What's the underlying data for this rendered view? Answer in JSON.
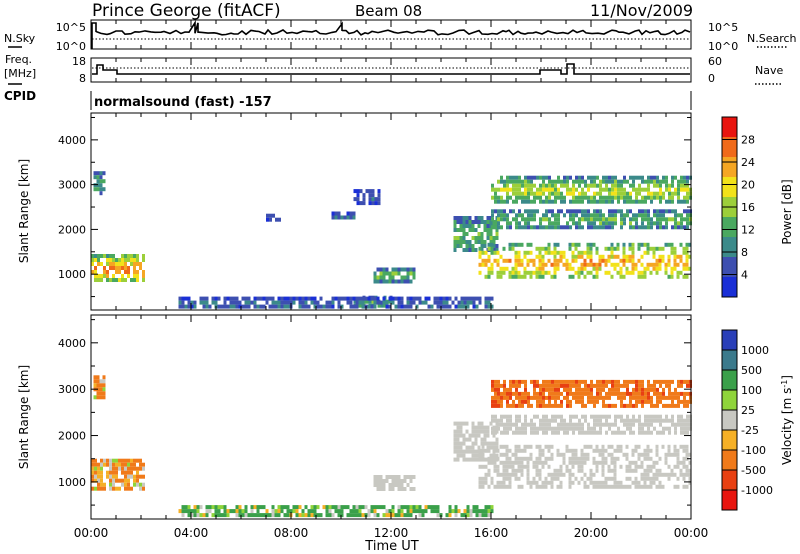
{
  "header": {
    "station": "Prince George (fitACF)",
    "beam": "Beam 08",
    "date": "11/Nov/2009"
  },
  "strip_panels": {
    "nsky_label": "N.Sky",
    "nsearch_label": "N.Search",
    "nsky_ticks": [
      "10^5",
      "10^0"
    ],
    "freq_label_1": "Freq.",
    "freq_label_2": "[MHz]",
    "freq_ticks": [
      "18",
      "8"
    ],
    "nave_label": "Nave",
    "nave_ticks": [
      "60",
      "0"
    ],
    "cpid_label": "CPID",
    "cpid_text": "normalsound (fast) -157"
  },
  "colors": {
    "power_scale": [
      "#1a2fd6",
      "#3d4fb0",
      "#3b8a8a",
      "#4aa860",
      "#9ccf3a",
      "#f2e21a",
      "#f5a623",
      "#f06a1a",
      "#e8150f"
    ],
    "velocity_scale": [
      "#2a3fb8",
      "#3b7a8c",
      "#3aa04a",
      "#8fd43a",
      "#c8c8c2",
      "#f5b026",
      "#f07a1a",
      "#e84012",
      "#e8150f"
    ]
  },
  "chart_data": [
    {
      "type": "heatmap",
      "name": "power",
      "xlabel": "",
      "ylabel": "Slant Range [km]",
      "y_ticks": [
        "1000",
        "2000",
        "3000",
        "4000"
      ],
      "ylim": [
        200,
        4600
      ],
      "colorbar_label": "Power [dB]",
      "colorbar_ticks": [
        "4",
        "8",
        "12",
        "16",
        "20",
        "24",
        "28"
      ],
      "colorbar_range": [
        0,
        32
      ],
      "x_ticks": [
        "00:00",
        "04:00",
        "08:00",
        "12:00",
        "16:00",
        "20:00",
        "00:00"
      ],
      "xlim_hours": [
        0,
        24
      ],
      "regions": [
        {
          "t": [
            0.0,
            2.1
          ],
          "r": [
            850,
            1450
          ],
          "v": 26
        },
        {
          "t": [
            0.1,
            0.5
          ],
          "r": [
            2850,
            3300
          ],
          "v": 12
        },
        {
          "t": [
            9.5,
            10.5
          ],
          "r": [
            2250,
            2400
          ],
          "v": 6
        },
        {
          "t": [
            7.0,
            7.5
          ],
          "r": [
            2250,
            2350
          ],
          "v": 6
        },
        {
          "t": [
            11.3,
            12.9
          ],
          "r": [
            880,
            1150
          ],
          "v": 16
        },
        {
          "t": [
            10.5,
            12.0
          ],
          "r": [
            280,
            520
          ],
          "v": 14
        },
        {
          "t": [
            3.5,
            16.0
          ],
          "r": [
            260,
            500
          ],
          "v": 8
        },
        {
          "t": [
            10.5,
            11.5
          ],
          "r": [
            2550,
            2900
          ],
          "v": 6
        },
        {
          "t": [
            14.5,
            16.3
          ],
          "r": [
            1500,
            2300
          ],
          "v": 14
        },
        {
          "t": [
            15.5,
            24.0
          ],
          "r": [
            900,
            1700
          ],
          "v": 24
        },
        {
          "t": [
            16.0,
            24.0
          ],
          "r": [
            2600,
            3200
          ],
          "v": 18
        },
        {
          "t": [
            16.0,
            24.0
          ],
          "r": [
            2050,
            2450
          ],
          "v": 14
        }
      ]
    },
    {
      "type": "heatmap",
      "name": "velocity",
      "xlabel": "Time UT",
      "ylabel": "Slant Range [km]",
      "y_ticks": [
        "1000",
        "2000",
        "3000",
        "4000"
      ],
      "ylim": [
        200,
        4600
      ],
      "colorbar_label": "Velocity [m s^-1]",
      "colorbar_ticks": [
        "1000",
        "500",
        "100",
        "25",
        "-25",
        "-100",
        "-500",
        "-1000"
      ],
      "x_ticks": [
        "00:00",
        "04:00",
        "08:00",
        "12:00",
        "16:00",
        "20:00",
        "00:00"
      ],
      "xlim_hours": [
        0,
        24
      ],
      "regions": [
        {
          "t": [
            0.0,
            2.1
          ],
          "r": [
            850,
            1500
          ],
          "v": -100
        },
        {
          "t": [
            0.1,
            0.5
          ],
          "r": [
            2850,
            3300
          ],
          "v": -100
        },
        {
          "t": [
            3.5,
            16.0
          ],
          "r": [
            260,
            500
          ],
          "v": 100
        },
        {
          "t": [
            11.3,
            12.9
          ],
          "r": [
            880,
            1150
          ],
          "v": 0
        },
        {
          "t": [
            14.5,
            16.3
          ],
          "r": [
            1500,
            2300
          ],
          "v": 0
        },
        {
          "t": [
            15.5,
            24.0
          ],
          "r": [
            900,
            1800
          ],
          "v": 0
        },
        {
          "t": [
            16.0,
            24.0
          ],
          "r": [
            2600,
            3200
          ],
          "v": -300
        },
        {
          "t": [
            16.0,
            24.0
          ],
          "r": [
            2050,
            2450
          ],
          "v": 0
        }
      ]
    }
  ]
}
